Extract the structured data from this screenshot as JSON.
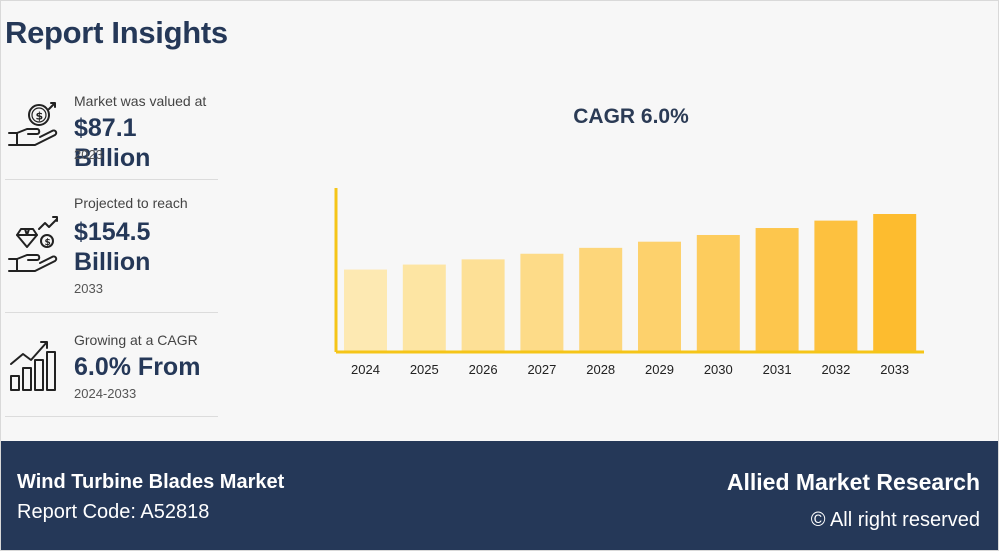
{
  "page": {
    "title": "Report Insights"
  },
  "stats": [
    {
      "label": "Market was valued at",
      "value": "$87.1 Billion",
      "sub": "2023",
      "icon": "money-hand-icon"
    },
    {
      "label": "Projected to reach",
      "value_line1": "$154.5",
      "value_line2": "Billion",
      "sub": "2033",
      "icon": "diamond-growth-hand-icon"
    },
    {
      "label": "Growing at a CAGR",
      "value": "6.0% From",
      "sub": "2024-2033",
      "icon": "bar-growth-icon"
    }
  ],
  "chart_data": {
    "type": "bar",
    "title": "CAGR 6.0%",
    "categories": [
      "2024",
      "2025",
      "2026",
      "2027",
      "2028",
      "2029",
      "2030",
      "2031",
      "2032",
      "2033"
    ],
    "values": [
      92.3,
      97.9,
      103.7,
      110.0,
      116.6,
      123.5,
      131.0,
      138.8,
      147.1,
      154.5
    ],
    "xlabel": "",
    "ylabel": "",
    "grid": false,
    "colors": [
      "#fde9b2",
      "#fde5a3",
      "#fde096",
      "#fddb88",
      "#fdd67a",
      "#fdd16c",
      "#fdcc5d",
      "#fdc64d",
      "#fdc13f",
      "#fdbc2f"
    ],
    "axis_color": "#f5c518"
  },
  "footer": {
    "market_name": "Wind Turbine Blades Market",
    "report_code": "Report Code: A52818",
    "brand": "Allied Market Research",
    "rights": "© All right reserved"
  }
}
